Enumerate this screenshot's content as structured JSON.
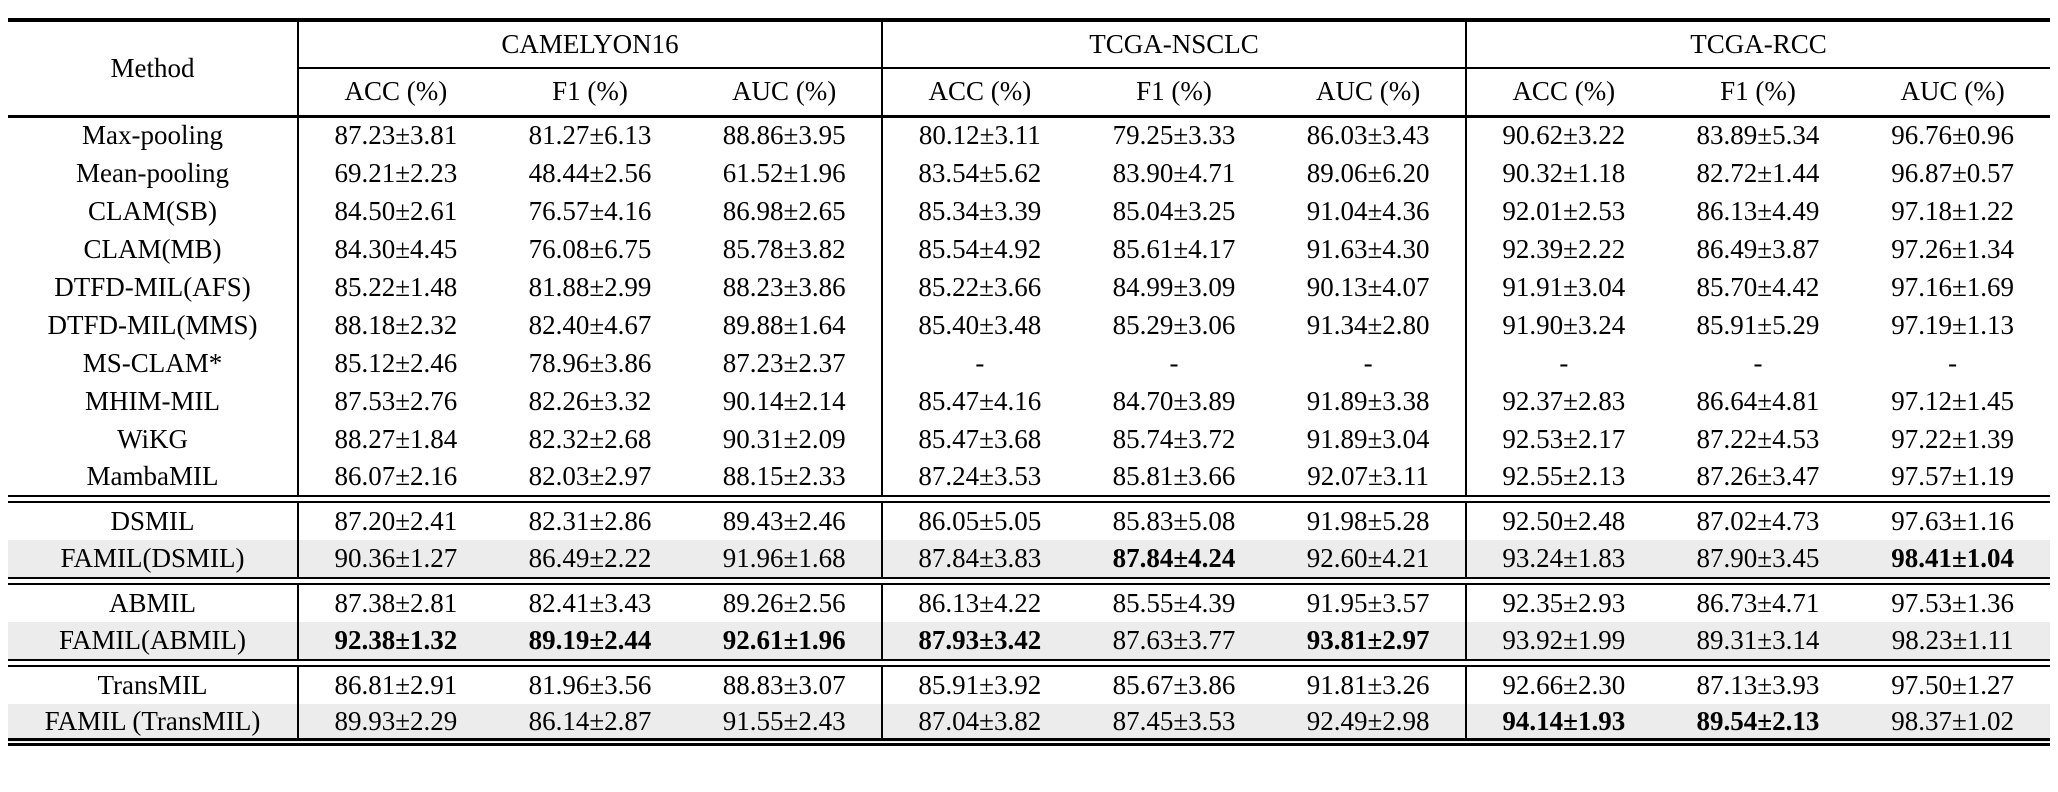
{
  "table": {
    "method_header": "Method",
    "highlight_color": "#ececec",
    "groups": [
      {
        "name": "CAMELYON16",
        "cols": [
          "ACC (%)",
          "F1 (%)",
          "AUC (%)"
        ]
      },
      {
        "name": "TCGA-NSCLC",
        "cols": [
          "ACC (%)",
          "F1 (%)",
          "AUC (%)"
        ]
      },
      {
        "name": "TCGA-RCC",
        "cols": [
          "ACC (%)",
          "F1 (%)",
          "AUC (%)"
        ]
      }
    ],
    "sections": [
      {
        "rows": [
          {
            "method": "Max-pooling",
            "highlight": false,
            "bold": [],
            "values": [
              "87.23±3.81",
              "81.27±6.13",
              "88.86±3.95",
              "80.12±3.11",
              "79.25±3.33",
              "86.03±3.43",
              "90.62±3.22",
              "83.89±5.34",
              "96.76±0.96"
            ]
          },
          {
            "method": "Mean-pooling",
            "highlight": false,
            "bold": [],
            "values": [
              "69.21±2.23",
              "48.44±2.56",
              "61.52±1.96",
              "83.54±5.62",
              "83.90±4.71",
              "89.06±6.20",
              "90.32±1.18",
              "82.72±1.44",
              "96.87±0.57"
            ]
          },
          {
            "method": "CLAM(SB)",
            "highlight": false,
            "bold": [],
            "values": [
              "84.50±2.61",
              "76.57±4.16",
              "86.98±2.65",
              "85.34±3.39",
              "85.04±3.25",
              "91.04±4.36",
              "92.01±2.53",
              "86.13±4.49",
              "97.18±1.22"
            ]
          },
          {
            "method": "CLAM(MB)",
            "highlight": false,
            "bold": [],
            "values": [
              "84.30±4.45",
              "76.08±6.75",
              "85.78±3.82",
              "85.54±4.92",
              "85.61±4.17",
              "91.63±4.30",
              "92.39±2.22",
              "86.49±3.87",
              "97.26±1.34"
            ]
          },
          {
            "method": "DTFD-MIL(AFS)",
            "highlight": false,
            "bold": [],
            "values": [
              "85.22±1.48",
              "81.88±2.99",
              "88.23±3.86",
              "85.22±3.66",
              "84.99±3.09",
              "90.13±4.07",
              "91.91±3.04",
              "85.70±4.42",
              "97.16±1.69"
            ]
          },
          {
            "method": "DTFD-MIL(MMS)",
            "highlight": false,
            "bold": [],
            "values": [
              "88.18±2.32",
              "82.40±4.67",
              "89.88±1.64",
              "85.40±3.48",
              "85.29±3.06",
              "91.34±2.80",
              "91.90±3.24",
              "85.91±5.29",
              "97.19±1.13"
            ]
          },
          {
            "method": "MS-CLAM*",
            "highlight": false,
            "bold": [],
            "values": [
              "85.12±2.46",
              "78.96±3.86",
              "87.23±2.37",
              "-",
              "-",
              "-",
              "-",
              "-",
              "-"
            ]
          },
          {
            "method": "MHIM-MIL",
            "highlight": false,
            "bold": [],
            "values": [
              "87.53±2.76",
              "82.26±3.32",
              "90.14±2.14",
              "85.47±4.16",
              "84.70±3.89",
              "91.89±3.38",
              "92.37±2.83",
              "86.64±4.81",
              "97.12±1.45"
            ]
          },
          {
            "method": "WiKG",
            "highlight": false,
            "bold": [],
            "values": [
              "88.27±1.84",
              "82.32±2.68",
              "90.31±2.09",
              "85.47±3.68",
              "85.74±3.72",
              "91.89±3.04",
              "92.53±2.17",
              "87.22±4.53",
              "97.22±1.39"
            ]
          },
          {
            "method": "MambaMIL",
            "highlight": false,
            "bold": [],
            "values": [
              "86.07±2.16",
              "82.03±2.97",
              "88.15±2.33",
              "87.24±3.53",
              "85.81±3.66",
              "92.07±3.11",
              "92.55±2.13",
              "87.26±3.47",
              "97.57±1.19"
            ]
          }
        ]
      },
      {
        "rows": [
          {
            "method": "DSMIL",
            "highlight": false,
            "bold": [],
            "values": [
              "87.20±2.41",
              "82.31±2.86",
              "89.43±2.46",
              "86.05±5.05",
              "85.83±5.08",
              "91.98±5.28",
              "92.50±2.48",
              "87.02±4.73",
              "97.63±1.16"
            ]
          },
          {
            "method": "FAMIL(DSMIL)",
            "highlight": true,
            "bold": [
              4,
              8
            ],
            "values": [
              "90.36±1.27",
              "86.49±2.22",
              "91.96±1.68",
              "87.84±3.83",
              "87.84±4.24",
              "92.60±4.21",
              "93.24±1.83",
              "87.90±3.45",
              "98.41±1.04"
            ]
          }
        ]
      },
      {
        "rows": [
          {
            "method": "ABMIL",
            "highlight": false,
            "bold": [],
            "values": [
              "87.38±2.81",
              "82.41±3.43",
              "89.26±2.56",
              "86.13±4.22",
              "85.55±4.39",
              "91.95±3.57",
              "92.35±2.93",
              "86.73±4.71",
              "97.53±1.36"
            ]
          },
          {
            "method": "FAMIL(ABMIL)",
            "highlight": true,
            "bold": [
              0,
              1,
              2,
              3,
              5
            ],
            "values": [
              "92.38±1.32",
              "89.19±2.44",
              "92.61±1.96",
              "87.93±3.42",
              "87.63±3.77",
              "93.81±2.97",
              "93.92±1.99",
              "89.31±3.14",
              "98.23±1.11"
            ]
          }
        ]
      },
      {
        "rows": [
          {
            "method": "TransMIL",
            "highlight": false,
            "bold": [],
            "values": [
              "86.81±2.91",
              "81.96±3.56",
              "88.83±3.07",
              "85.91±3.92",
              "85.67±3.86",
              "91.81±3.26",
              "92.66±2.30",
              "87.13±3.93",
              "97.50±1.27"
            ]
          },
          {
            "method": "FAMIL (TransMIL)",
            "highlight": true,
            "bold": [
              6,
              7
            ],
            "values": [
              "89.93±2.29",
              "86.14±2.87",
              "91.55±2.43",
              "87.04±3.82",
              "87.45±3.53",
              "92.49±2.98",
              "94.14±1.93",
              "89.54±2.13",
              "98.37±1.02"
            ]
          }
        ]
      }
    ]
  }
}
